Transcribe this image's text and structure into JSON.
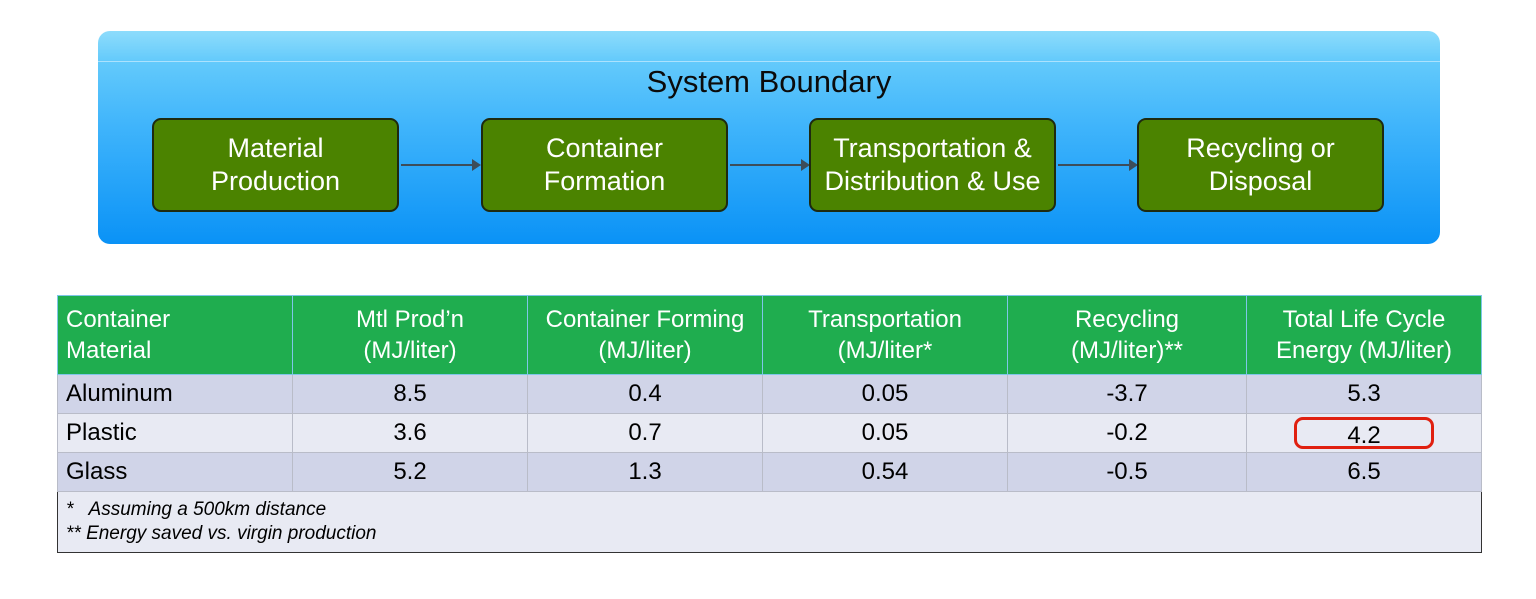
{
  "diagram": {
    "title": "System Boundary",
    "stages": [
      "Material\nProduction",
      "Container\nFormation",
      "Transportation &\nDistribution & Use",
      "Recycling or\nDisposal"
    ],
    "colors": {
      "boundary": "#3fb4fb",
      "stage_fill": "#4b8300"
    }
  },
  "table": {
    "headers": [
      "Container\nMaterial",
      "Mtl Prod’n\n(MJ/liter)",
      "Container Forming\n(MJ/liter)",
      "Transportation\n(MJ/liter*",
      "Recycling\n(MJ/liter)**",
      "Total Life Cycle\nEnergy (MJ/liter)"
    ],
    "rows": [
      [
        "Aluminum",
        "8.5",
        "0.4",
        "0.05",
        "-3.7",
        "5.3"
      ],
      [
        "Plastic",
        "3.6",
        "0.7",
        "0.05",
        "-0.2",
        "4.2"
      ],
      [
        "Glass",
        "5.2",
        "1.3",
        "0.54",
        "-0.5",
        "6.5"
      ]
    ],
    "notes": [
      "*   Assuming a 500km distance",
      "** Energy saved vs. virgin production"
    ],
    "highlighted_cell": "Plastic / Total Life Cycle Energy",
    "colors": {
      "header": "#1fad4f",
      "row_odd": "#d0d4e8",
      "row_even": "#e8eaf3",
      "highlight": "#e02010"
    }
  }
}
